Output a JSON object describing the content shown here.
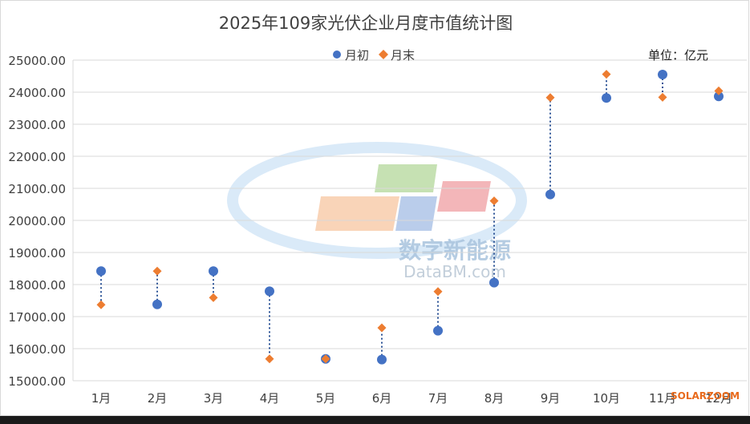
{
  "chart_data": {
    "type": "scatter",
    "title": "2025年109家光伏企业月度市值统计图",
    "unit_label": "单位：亿元",
    "categories": [
      "1月",
      "2月",
      "3月",
      "4月",
      "5月",
      "6月",
      "7月",
      "8月",
      "9月",
      "10月",
      "11月",
      "12月"
    ],
    "series": [
      {
        "name": "月初",
        "marker": "circle",
        "color": "#4472C4",
        "values": [
          18420,
          17380,
          18420,
          17790,
          15680,
          15660,
          16560,
          18060,
          20810,
          23820,
          24550,
          23870
        ]
      },
      {
        "name": "月末",
        "marker": "diamond",
        "color": "#ED7D31",
        "values": [
          17370,
          18420,
          17590,
          15680,
          15680,
          16650,
          17780,
          20610,
          23830,
          24560,
          23840,
          24040
        ]
      }
    ],
    "connector": {
      "style": "dotted",
      "color": "#2E5597"
    },
    "ylim": [
      15000,
      25000
    ],
    "yticks": [
      "15000.00",
      "16000.00",
      "17000.00",
      "18000.00",
      "19000.00",
      "20000.00",
      "21000.00",
      "22000.00",
      "23000.00",
      "24000.00",
      "25000.00"
    ],
    "grid": true,
    "legend_position": "top-center",
    "watermark": {
      "cn": "数字新能源",
      "en": "DataBM.com"
    },
    "source_tag": "SOLARZOOM"
  }
}
